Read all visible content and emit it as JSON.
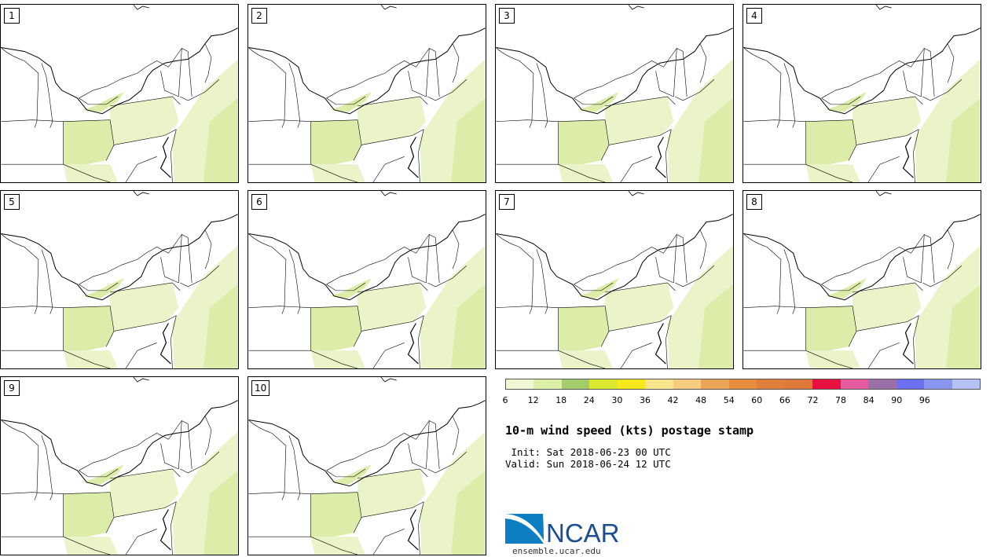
{
  "panels": [
    {
      "label": "1"
    },
    {
      "label": "2"
    },
    {
      "label": "3"
    },
    {
      "label": "4"
    },
    {
      "label": "5"
    },
    {
      "label": "6"
    },
    {
      "label": "7"
    },
    {
      "label": "8"
    },
    {
      "label": "9"
    },
    {
      "label": "10"
    }
  ],
  "colorbar": {
    "ticks": [
      "6",
      "12",
      "18",
      "24",
      "30",
      "36",
      "42",
      "48",
      "54",
      "60",
      "66",
      "72",
      "78",
      "84",
      "90",
      "96"
    ],
    "colors": [
      "#f0f7d4",
      "#dcefa6",
      "#a3cc6a",
      "#dbe830",
      "#f7e71b",
      "#f9e58c",
      "#f6cd80",
      "#eba357",
      "#e88d3e",
      "#e07e3c",
      "#dd7838",
      "#e8103e",
      "#e65aa0",
      "#9b6fa8",
      "#6b6ff0",
      "#8896f0",
      "#b6c1f4"
    ]
  },
  "title": "10-m wind speed (kts) postage stamp",
  "init": " Init: Sat 2018-06-23 00 UTC",
  "valid": "Valid: Sun 2018-06-24 12 UTC",
  "logo": {
    "text": "NCAR",
    "url": "ensemble.ucar.edu"
  },
  "fill_colors": {
    "light": "#eaf4c8",
    "mid": "#dcedaa",
    "dark": "#a9cf6f"
  }
}
